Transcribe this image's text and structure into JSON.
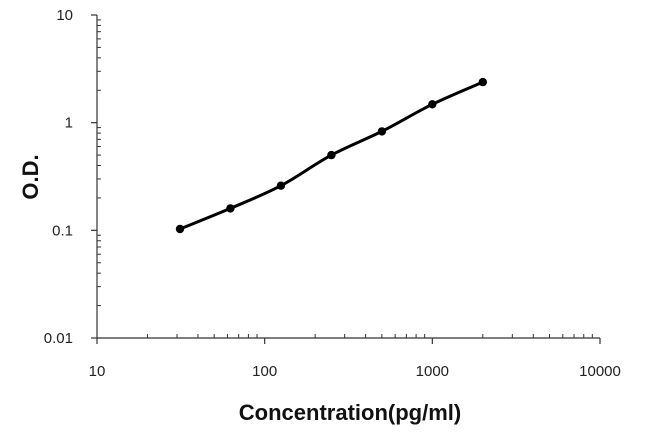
{
  "chart_data": {
    "type": "line",
    "title": "",
    "xlabel": "Concentration(pg/ml)",
    "ylabel": "O.D.",
    "x_scale": "log",
    "y_scale": "log",
    "xlim": [
      10,
      10000
    ],
    "ylim": [
      0.01,
      10
    ],
    "x_tick_labels": [
      "10",
      "100",
      "1000",
      "10000"
    ],
    "y_tick_labels": [
      "10",
      "1",
      "0.1",
      "0.01"
    ],
    "grid": false,
    "legend": "none",
    "series": [
      {
        "x": [
          31.25,
          62.5,
          125,
          250,
          500,
          1000,
          2000
        ],
        "y": [
          0.103,
          0.16,
          0.26,
          0.5,
          0.83,
          1.48,
          2.38
        ],
        "color": "#000000",
        "marker": "circle"
      }
    ]
  }
}
